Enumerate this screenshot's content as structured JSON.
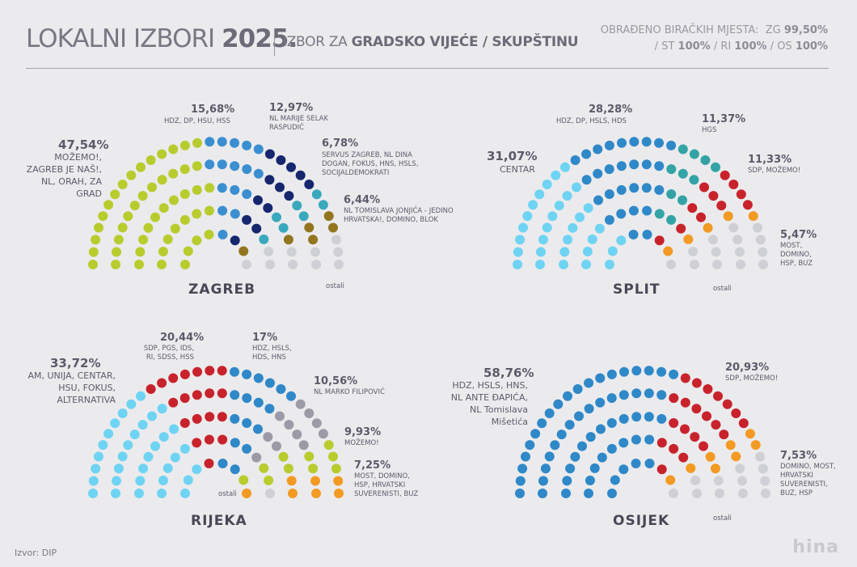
{
  "header": {
    "title_light": "LOKALNI IZBORI",
    "title_bold": "2025.",
    "subtitle_light": "IZBOR ZA",
    "subtitle_bold": "GRADSKO VIJEĆE / SKUPŠTINU",
    "processed_label": "OBRAĐENO BIRAČKIH MJESTA:",
    "processed": [
      {
        "code": "ZG",
        "value": "99,50%"
      },
      {
        "code": "ST",
        "value": "100%"
      },
      {
        "code": "RI",
        "value": "100%"
      },
      {
        "code": "OS",
        "value": "100%"
      }
    ]
  },
  "others_label": "ostali",
  "source": "Izvor: DIP",
  "logo": "hina",
  "chart_data": [
    {
      "type": "parliament",
      "city": "ZAGREB",
      "parties": [
        {
          "pct": "47,54%",
          "name": "MOŽEMO!, ZAGREB JE NAŠ!, NL, ORAH, ZA GRAD",
          "value": 47.54,
          "dots": 48,
          "color": "#b8cc2e"
        },
        {
          "pct": "15,68%",
          "name": "HDZ, DP, HSU, HSS",
          "value": 15.68,
          "dots": 16,
          "color": "#3b8fd0"
        },
        {
          "pct": "12,97%",
          "name": "NL MARIJE SELAK RASPUDIĆ",
          "value": 12.97,
          "dots": 13,
          "color": "#16276e"
        },
        {
          "pct": "6,78%",
          "name": "SERVUS ZAGREB, NL DINA DOGAN, FOKUS, HNS, HSLS, SOCIJALDEMOKRATI",
          "value": 6.78,
          "dots": 7,
          "color": "#3aa9bd"
        },
        {
          "pct": "6,44%",
          "name": "NL TOMISLAVA JONJIĆA - JEDINO HRVATSKA!, DOMINO, BLOK",
          "value": 6.44,
          "dots": 6,
          "color": "#937520"
        },
        {
          "pct": "",
          "name": "ostali",
          "value": 10.59,
          "dots": 10,
          "color": "#cfcfd6"
        }
      ]
    },
    {
      "type": "parliament",
      "city": "SPLIT",
      "parties": [
        {
          "pct": "31,07%",
          "name": "CENTAR",
          "value": 31.07,
          "dots": 31,
          "color": "#6fd3f3"
        },
        {
          "pct": "28,28%",
          "name": "HDZ, DP, HSLS, HDS",
          "value": 28.28,
          "dots": 28,
          "color": "#2f88c8"
        },
        {
          "pct": "11,37%",
          "name": "HGS",
          "value": 11.37,
          "dots": 11,
          "color": "#34a3a6"
        },
        {
          "pct": "11,33%",
          "name": "SDP, MOŽEMO!",
          "value": 11.33,
          "dots": 11,
          "color": "#c8232c"
        },
        {
          "pct": "5,47%",
          "name": "MOST, DOMINO, HSP, BUZ",
          "value": 5.47,
          "dots": 5,
          "color": "#f39a24"
        },
        {
          "pct": "",
          "name": "ostali",
          "value": 12.48,
          "dots": 14,
          "color": "#cfcfd6"
        }
      ]
    },
    {
      "type": "parliament",
      "city": "RIJEKA",
      "parties": [
        {
          "pct": "33,72%",
          "name": "AM, UNIJA, CENTAR, HSU, FOKUS, ALTERNATIVA",
          "value": 33.72,
          "dots": 34,
          "color": "#6fd3f3"
        },
        {
          "pct": "20,44%",
          "name": "SDP, PGS, IDS, RI, SDSS, HSS",
          "value": 20.44,
          "dots": 20,
          "color": "#c8232c"
        },
        {
          "pct": "17%",
          "name": "HDZ, HSLS, HDS, HNS",
          "value": 17,
          "dots": 17,
          "color": "#2f88c8"
        },
        {
          "pct": "10,56%",
          "name": "NL MARKO FILIPOVIĆ",
          "value": 10.56,
          "dots": 11,
          "color": "#9c9aa6"
        },
        {
          "pct": "9,93%",
          "name": "MOŽEMO!",
          "value": 9.93,
          "dots": 10,
          "color": "#b8cc2e"
        },
        {
          "pct": "7,25%",
          "name": "MOST, DOMINO, HSP, HRVATSKI SUVERENISTI, BUZ",
          "value": 7.25,
          "dots": 7,
          "color": "#f39a24"
        },
        {
          "pct": "",
          "name": "ostali",
          "value": 1.1,
          "dots": 1,
          "color": "#cfcfd6"
        }
      ]
    },
    {
      "type": "parliament",
      "city": "OSIJEK",
      "parties": [
        {
          "pct": "58,76%",
          "name": "HDZ, HSLS, HNS, NL ANTE ĐAPIĆA, NL Tomislava Mišetića",
          "value": 58.76,
          "dots": 59,
          "color": "#2f88c8"
        },
        {
          "pct": "20,93%",
          "name": "SDP, MOŽEMO!",
          "value": 20.93,
          "dots": 21,
          "color": "#c8232c"
        },
        {
          "pct": "7,53%",
          "name": "DOMINO, MOST, HRVATSKI SUVERENISTI, BUZ, HSP",
          "value": 7.53,
          "dots": 8,
          "color": "#f39a24"
        },
        {
          "pct": "",
          "name": "ostali",
          "value": 12.78,
          "dots": 12,
          "color": "#cfcfd6"
        }
      ]
    }
  ]
}
